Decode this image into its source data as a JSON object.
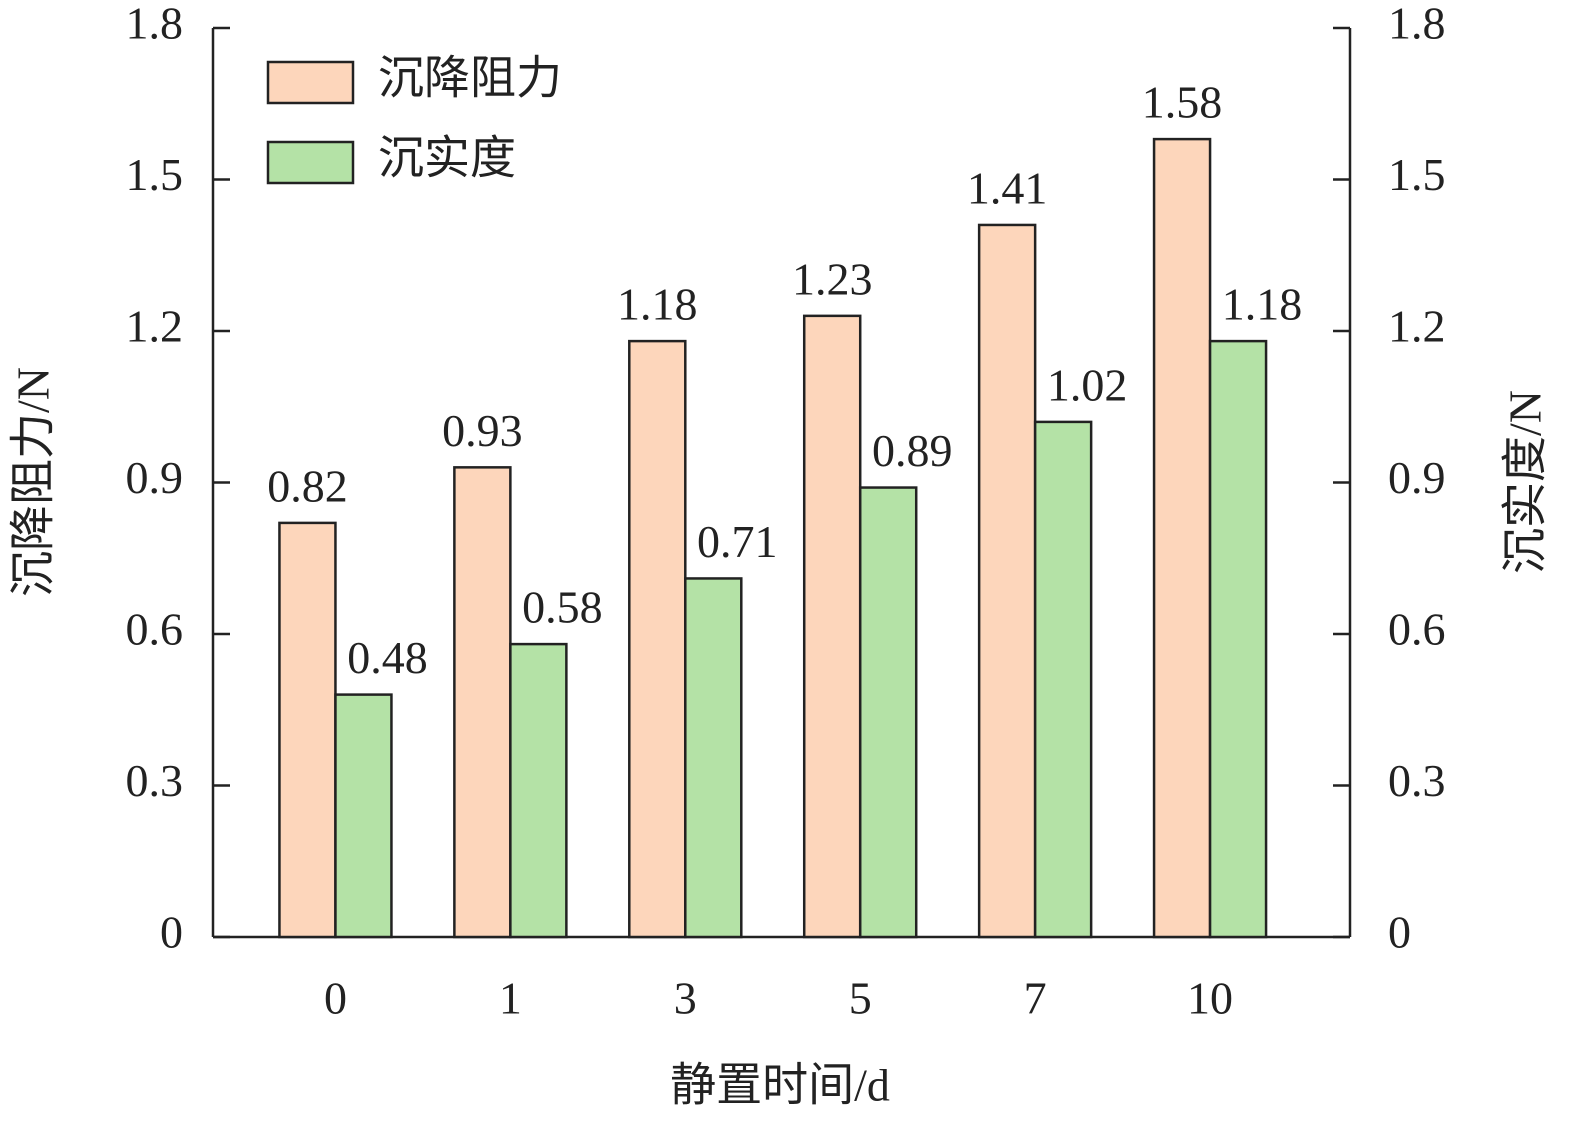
{
  "chart_data": {
    "type": "bar",
    "xlabel": "静置时间/d",
    "ylabel": "沉降阻力/N",
    "y2label": "沉实度/N",
    "categories": [
      "0",
      "1",
      "3",
      "5",
      "7",
      "10"
    ],
    "series": [
      {
        "name": "沉降阻力",
        "color": "#fdd6bb",
        "values": [
          0.82,
          0.93,
          1.18,
          1.23,
          1.41,
          1.58
        ]
      },
      {
        "name": "沉实度",
        "color": "#b4e2a6",
        "axis": "y2",
        "values": [
          0.48,
          0.58,
          0.71,
          0.89,
          1.02,
          1.18
        ]
      }
    ],
    "ylim": [
      0,
      1.8
    ],
    "yticks": [
      0,
      0.3,
      0.6,
      0.9,
      1.2,
      1.5,
      1.8
    ],
    "y2lim": [
      0,
      1.8
    ],
    "y2ticks": [
      0,
      0.3,
      0.6,
      0.9,
      1.2,
      1.5,
      1.8
    ],
    "legend": "upper left"
  }
}
